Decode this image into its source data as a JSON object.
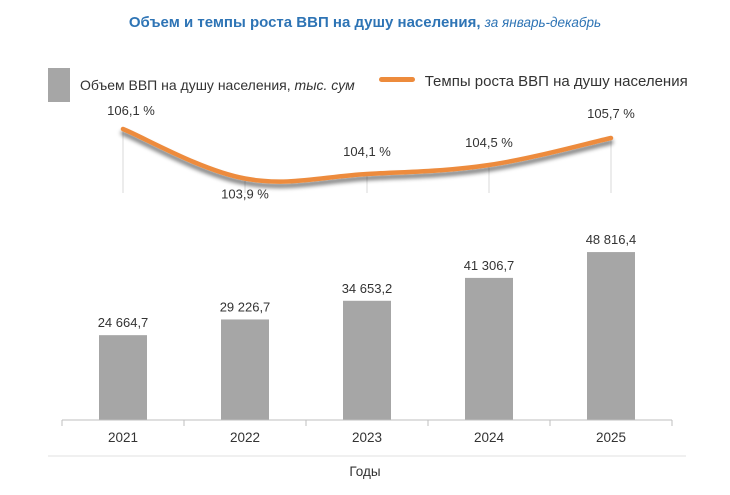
{
  "title": {
    "main": "Объем и темпы роста ВВП на душу населения,",
    "sub": "за январь-декабрь"
  },
  "legend": {
    "bar_label": "Объем ВВП на душу населения,",
    "bar_unit": "тыс. сум",
    "line_label": "Темпы роста ВВП на душу населения"
  },
  "colors": {
    "title": "#2e74b5",
    "bar": "#a6a6a6",
    "line": "#ed8b3c",
    "axis": "#bfbfbf"
  },
  "chart_data": {
    "type": "bar+line",
    "title": "Объем и темпы роста ВВП на душу населения, за январь-декабрь",
    "xlabel": "Годы",
    "ylabel": "",
    "categories": [
      "2021",
      "2022",
      "2023",
      "2024",
      "2025"
    ],
    "series": [
      {
        "name": "Объем ВВП на душу населения, тыс. сум",
        "type": "bar",
        "values": [
          24664.7,
          29226.7,
          34653.2,
          41306.7,
          48816.4
        ],
        "labels": [
          "24 664,7",
          "29 226,7",
          "34 653,2",
          "41 306,7",
          "48 816,4"
        ],
        "ylim": [
          0,
          50000
        ]
      },
      {
        "name": "Темпы роста ВВП на душу населения",
        "type": "line",
        "values": [
          106.1,
          103.9,
          104.1,
          104.5,
          105.7
        ],
        "labels": [
          "106,1 %",
          "103,9 %",
          "104,1 %",
          "104,5 %",
          "105,7 %"
        ],
        "ylim": [
          103.3,
          106.5
        ]
      }
    ],
    "legend_position": "top"
  }
}
